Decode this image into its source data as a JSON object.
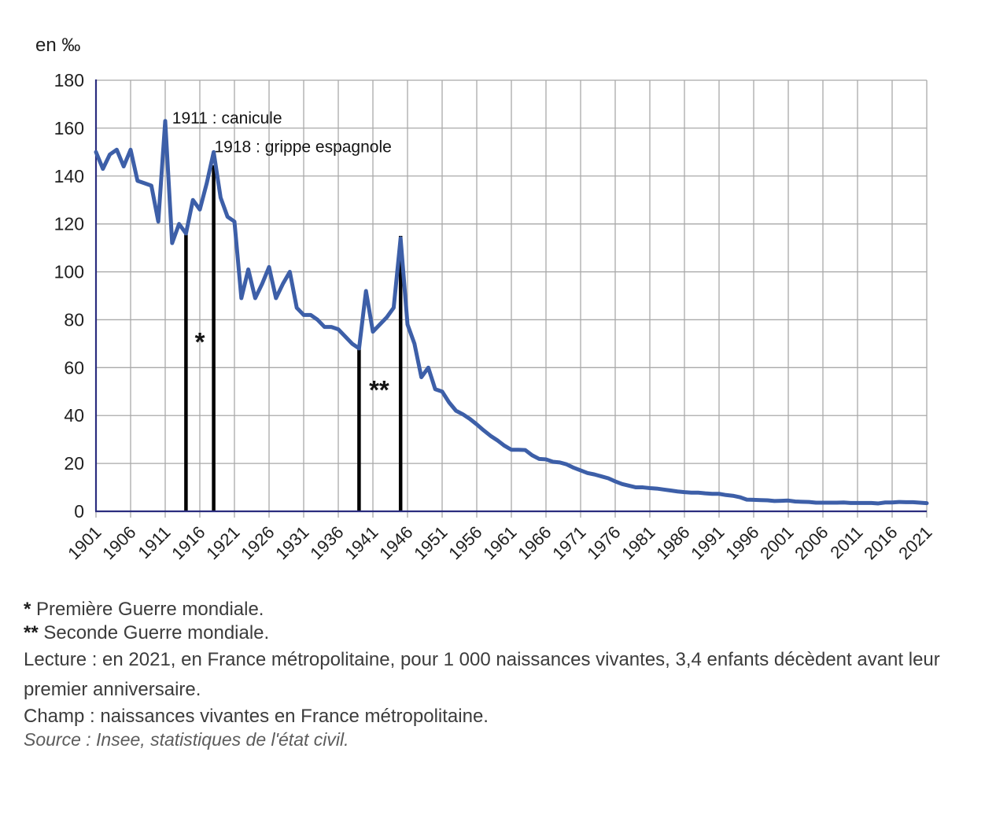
{
  "chart": {
    "unit_label": "en ‰"
  },
  "chart_data": {
    "type": "line",
    "unit": "en ‰",
    "year_start": 1901,
    "year_end": 2021,
    "ylim": [
      0,
      180
    ],
    "y_ticks": [
      0,
      20,
      40,
      60,
      80,
      100,
      120,
      140,
      160,
      180
    ],
    "x_ticks": [
      1901,
      1906,
      1911,
      1916,
      1921,
      1926,
      1931,
      1936,
      1941,
      1946,
      1951,
      1956,
      1961,
      1966,
      1971,
      1976,
      1981,
      1986,
      1991,
      1996,
      2001,
      2006,
      2011,
      2016,
      2021
    ],
    "values": [
      150,
      143,
      149,
      151,
      144,
      151,
      138,
      137,
      136,
      121,
      163,
      112,
      120,
      116,
      130,
      126,
      137,
      150,
      131,
      123,
      121,
      89,
      101,
      89,
      95,
      102,
      89,
      95,
      100,
      85,
      82,
      82,
      80,
      77,
      77,
      76,
      73,
      70,
      68,
      92,
      75,
      78,
      81,
      85,
      114,
      78,
      70,
      56,
      60,
      51,
      50,
      45.5,
      42,
      40.5,
      38.6,
      36.3,
      33.8,
      31.5,
      29.6,
      27.4,
      25.7,
      25.7,
      25.6,
      23.4,
      21.9,
      21.7,
      20.7,
      20.4,
      19.6,
      18.2,
      17.1,
      16,
      15.4,
      14.6,
      13.8,
      12.5,
      11.4,
      10.7,
      10,
      10,
      9.7,
      9.5,
      9.1,
      8.7,
      8.3,
      8,
      7.8,
      7.8,
      7.5,
      7.3,
      7.3,
      6.8,
      6.5,
      5.9,
      4.9,
      4.8,
      4.7,
      4.6,
      4.3,
      4.4,
      4.5,
      4.1,
      4,
      3.9,
      3.6,
      3.6,
      3.6,
      3.6,
      3.7,
      3.5,
      3.5,
      3.5,
      3.5,
      3.3,
      3.7,
      3.7,
      3.9,
      3.8,
      3.8,
      3.6,
      3.4
    ],
    "event_lines": [
      {
        "year": 1914,
        "top": 115.5
      },
      {
        "year": 1918,
        "top": 144.5
      },
      {
        "year": 1939,
        "top": 68
      },
      {
        "year": 1945,
        "top": 115
      }
    ],
    "annotations": [
      {
        "text": "1911 : canicule",
        "year": 1912,
        "value": 162
      },
      {
        "text": "1918 : grippe espagnole",
        "year": 1918.1,
        "value": 150
      }
    ],
    "star_markers": [
      {
        "text": "*",
        "year": 1916,
        "value": 67
      },
      {
        "text": "**",
        "year": 1941.9,
        "value": 47
      }
    ],
    "colors": {
      "line": "#3d5fa8",
      "axis": "#2b2d7e",
      "grid": "#a9a9a9",
      "event": "#000000",
      "tick_label": "#1f1f1f",
      "annotation": "#141414"
    },
    "grid": true,
    "legend": "none"
  },
  "footnotes": {
    "ww1_marker": "*",
    "ww1_text": " Première Guerre mondiale.",
    "ww2_marker": "**",
    "ww2_text": " Seconde Guerre mondiale.",
    "lecture": "Lecture : en 2021, en France métropolitaine, pour 1 000 naissances vivantes, 3,4 enfants décèdent avant leur premier anniversaire.",
    "champ": "Champ : naissances vivantes en France métropolitaine.",
    "source": "Source : Insee, statistiques de l'état civil."
  }
}
